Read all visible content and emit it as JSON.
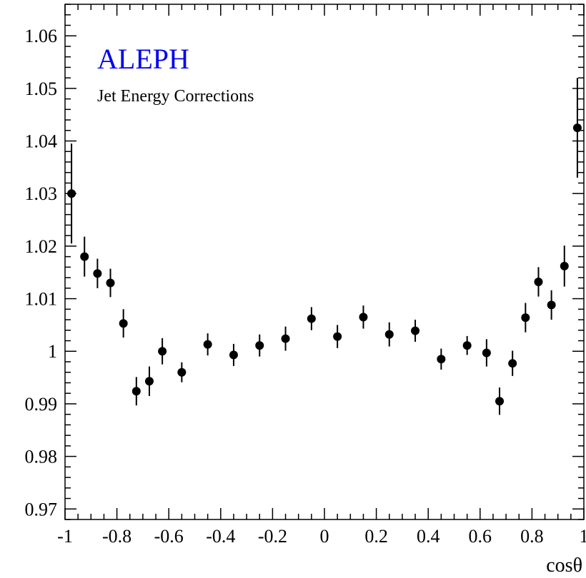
{
  "chart_data": {
    "type": "scatter",
    "title": "ALEPH",
    "subtitle": "Jet Energy Corrections",
    "xlabel": "cosθ",
    "ylabel": "",
    "xlim": [
      -1,
      1
    ],
    "ylim": [
      0.968,
      1.066
    ],
    "x_ticks": [
      "-1",
      "-0.8",
      "-0.6",
      "-0.4",
      "-0.2",
      "0",
      "0.2",
      "0.4",
      "0.6",
      "0.8",
      "1"
    ],
    "y_ticks": [
      "0.97",
      "0.98",
      "0.99",
      "1",
      "1.01",
      "1.02",
      "1.03",
      "1.04",
      "1.05",
      "1.06"
    ],
    "grid": false,
    "colors": {
      "title": "#0000ee",
      "markers": "#000000",
      "axes": "#000000"
    },
    "series": [
      {
        "points": [
          {
            "x": -0.975,
            "y": 1.03,
            "err": 0.0095
          },
          {
            "x": -0.925,
            "y": 1.018,
            "err": 0.0038
          },
          {
            "x": -0.875,
            "y": 1.0148,
            "err": 0.0028
          },
          {
            "x": -0.825,
            "y": 1.013,
            "err": 0.0027
          },
          {
            "x": -0.775,
            "y": 1.0053,
            "err": 0.0027
          },
          {
            "x": -0.725,
            "y": 0.9924,
            "err": 0.0027
          },
          {
            "x": -0.675,
            "y": 0.9943,
            "err": 0.0028
          },
          {
            "x": -0.625,
            "y": 1.0,
            "err": 0.0025
          },
          {
            "x": -0.55,
            "y": 0.996,
            "err": 0.0019
          },
          {
            "x": -0.45,
            "y": 1.0013,
            "err": 0.0021
          },
          {
            "x": -0.35,
            "y": 0.9993,
            "err": 0.0021
          },
          {
            "x": -0.25,
            "y": 1.0011,
            "err": 0.0021
          },
          {
            "x": -0.15,
            "y": 1.0024,
            "err": 0.0023
          },
          {
            "x": -0.05,
            "y": 1.0062,
            "err": 0.0022
          },
          {
            "x": 0.05,
            "y": 1.0028,
            "err": 0.0022
          },
          {
            "x": 0.15,
            "y": 1.0065,
            "err": 0.0022
          },
          {
            "x": 0.25,
            "y": 1.0032,
            "err": 0.0023
          },
          {
            "x": 0.35,
            "y": 1.0039,
            "err": 0.0021
          },
          {
            "x": 0.45,
            "y": 0.9985,
            "err": 0.002
          },
          {
            "x": 0.55,
            "y": 1.0011,
            "err": 0.0018
          },
          {
            "x": 0.625,
            "y": 0.9997,
            "err": 0.0026
          },
          {
            "x": 0.675,
            "y": 0.9905,
            "err": 0.0026
          },
          {
            "x": 0.725,
            "y": 0.9977,
            "err": 0.0024
          },
          {
            "x": 0.775,
            "y": 1.0064,
            "err": 0.0028
          },
          {
            "x": 0.825,
            "y": 1.0132,
            "err": 0.0028
          },
          {
            "x": 0.875,
            "y": 1.0088,
            "err": 0.0028
          },
          {
            "x": 0.925,
            "y": 1.0162,
            "err": 0.0039
          },
          {
            "x": 0.975,
            "y": 1.0425,
            "err": 0.0095
          }
        ]
      }
    ]
  }
}
